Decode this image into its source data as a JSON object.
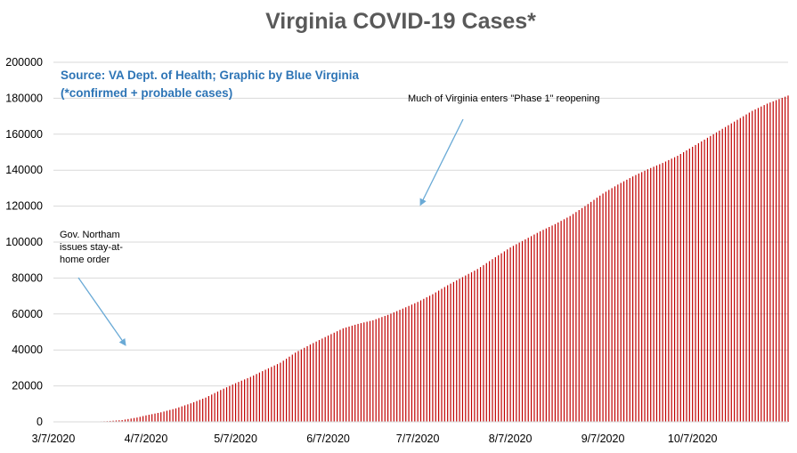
{
  "chart_data": {
    "type": "bar",
    "title": "Virginia COVID-19 Cases*",
    "source_note": [
      "Source: VA Dept. of Health; Graphic by Blue Virginia",
      "(*confirmed + probable cases)"
    ],
    "ylim": [
      0,
      200000
    ],
    "y_ticks": [
      "0",
      "20000",
      "40000",
      "60000",
      "80000",
      "100000",
      "120000",
      "140000",
      "160000",
      "180000",
      "200000"
    ],
    "x_ticks": [
      "3/7/2020",
      "4/7/2020",
      "5/7/2020",
      "6/7/2020",
      "7/7/2020",
      "8/7/2020",
      "9/7/2020",
      "10/7/2020"
    ],
    "x_start": "2020-03-07",
    "x_end": "2020-11-08",
    "bar_color": "#c00000",
    "grid": true,
    "series": [
      {
        "values": [
          [
            "2020-03-07",
            0
          ],
          [
            "2020-03-15",
            45
          ],
          [
            "2020-03-21",
            150
          ],
          [
            "2020-03-25",
            400
          ],
          [
            "2020-03-30",
            1000
          ],
          [
            "2020-04-04",
            2400
          ],
          [
            "2020-04-07",
            3600
          ],
          [
            "2020-04-12",
            5300
          ],
          [
            "2020-04-17",
            7500
          ],
          [
            "2020-04-22",
            10300
          ],
          [
            "2020-04-27",
            13500
          ],
          [
            "2020-05-02",
            17700
          ],
          [
            "2020-05-07",
            21500
          ],
          [
            "2020-05-12",
            25000
          ],
          [
            "2020-05-17",
            29000
          ],
          [
            "2020-05-22",
            32900
          ],
          [
            "2020-05-27",
            38500
          ],
          [
            "2020-06-01",
            43000
          ],
          [
            "2020-06-07",
            48000
          ],
          [
            "2020-06-12",
            52000
          ],
          [
            "2020-06-17",
            54500
          ],
          [
            "2020-06-22",
            56500
          ],
          [
            "2020-06-27",
            59500
          ],
          [
            "2020-07-02",
            63000
          ],
          [
            "2020-07-07",
            66700
          ],
          [
            "2020-07-12",
            71000
          ],
          [
            "2020-07-17",
            76000
          ],
          [
            "2020-07-22",
            80500
          ],
          [
            "2020-07-27",
            85000
          ],
          [
            "2020-08-01",
            90500
          ],
          [
            "2020-08-07",
            97000
          ],
          [
            "2020-08-12",
            101500
          ],
          [
            "2020-08-17",
            106000
          ],
          [
            "2020-08-22",
            110000
          ],
          [
            "2020-08-27",
            114500
          ],
          [
            "2020-09-01",
            120000
          ],
          [
            "2020-09-07",
            127000
          ],
          [
            "2020-09-12",
            132000
          ],
          [
            "2020-09-17",
            136500
          ],
          [
            "2020-09-22",
            140500
          ],
          [
            "2020-09-27",
            144000
          ],
          [
            "2020-10-02",
            148000
          ],
          [
            "2020-10-07",
            153000
          ],
          [
            "2020-10-12",
            158000
          ],
          [
            "2020-10-17",
            163000
          ],
          [
            "2020-10-22",
            168000
          ],
          [
            "2020-10-27",
            173000
          ],
          [
            "2020-11-01",
            177000
          ],
          [
            "2020-11-08",
            181500
          ]
        ]
      }
    ],
    "annotations": [
      {
        "lines": [
          "Gov. Northam",
          "issues stay-at-",
          "home order"
        ],
        "date": "2020-03-31",
        "value": 40000
      },
      {
        "lines": [
          "Much of Virginia enters \"Phase 1\" reopening"
        ],
        "date": "2020-07-08",
        "value": 119000
      }
    ],
    "annotation_color": "#6aaad6"
  }
}
